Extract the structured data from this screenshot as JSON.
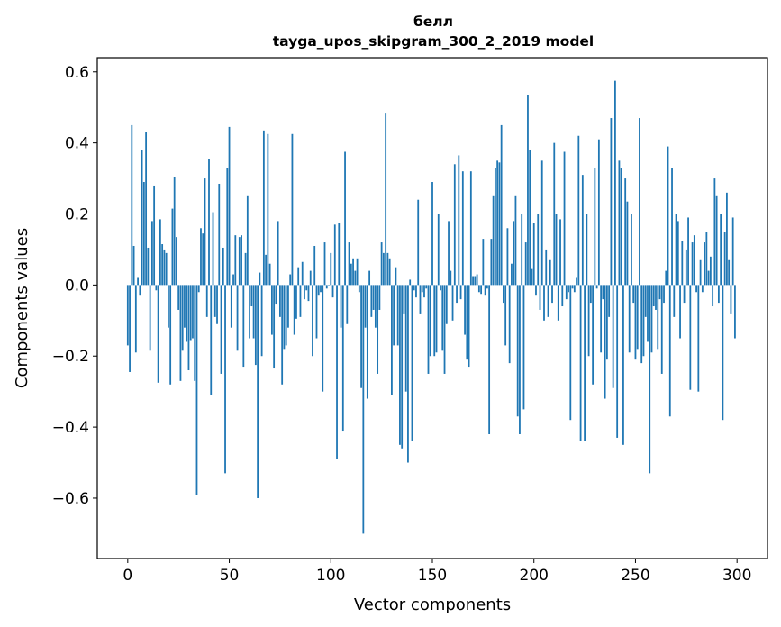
{
  "chart_data": {
    "type": "bar",
    "title": "белл",
    "subtitle": "tayga_upos_skipgram_300_2_2019 model",
    "xlabel": "Vector components",
    "ylabel": "Components values",
    "xlim": [
      -15,
      315
    ],
    "ylim": [
      -0.77,
      0.64
    ],
    "xticks": [
      0,
      50,
      100,
      150,
      200,
      250,
      300
    ],
    "xtick_labels": [
      "0",
      "50",
      "100",
      "150",
      "200",
      "250",
      "300"
    ],
    "yticks": [
      -0.6,
      -0.4,
      -0.2,
      0.0,
      0.2,
      0.4,
      0.6
    ],
    "ytick_labels": [
      "−0.6",
      "−0.4",
      "−0.2",
      "0.0",
      "0.2",
      "0.4",
      "0.6"
    ],
    "bar_color": "#1f77b4",
    "categories_start": 0,
    "values": [
      -0.17,
      -0.245,
      0.45,
      0.11,
      -0.19,
      0.02,
      -0.03,
      0.38,
      0.29,
      0.43,
      0.105,
      -0.185,
      0.18,
      0.28,
      -0.015,
      -0.275,
      0.185,
      0.115,
      0.1,
      0.09,
      -0.12,
      -0.28,
      0.215,
      0.305,
      0.135,
      -0.07,
      -0.27,
      -0.185,
      -0.12,
      -0.16,
      -0.24,
      -0.155,
      -0.15,
      -0.27,
      -0.59,
      -0.02,
      0.16,
      0.145,
      0.3,
      -0.09,
      0.355,
      -0.31,
      0.205,
      -0.09,
      -0.11,
      0.285,
      -0.25,
      0.105,
      -0.53,
      0.33,
      0.445,
      -0.12,
      0.03,
      0.14,
      -0.185,
      0.135,
      0.14,
      -0.23,
      0.09,
      0.25,
      -0.15,
      -0.06,
      -0.15,
      -0.225,
      -0.6,
      0.035,
      -0.2,
      0.435,
      0.085,
      0.425,
      0.06,
      -0.14,
      -0.235,
      -0.055,
      0.18,
      -0.09,
      -0.28,
      -0.18,
      -0.17,
      -0.12,
      0.03,
      0.425,
      -0.14,
      -0.095,
      0.05,
      -0.09,
      0.065,
      -0.04,
      -0.015,
      -0.045,
      0.04,
      -0.2,
      0.11,
      -0.15,
      -0.03,
      -0.02,
      -0.3,
      0.12,
      -0.01,
      0.0,
      0.09,
      -0.035,
      0.17,
      -0.49,
      0.175,
      -0.12,
      -0.41,
      0.375,
      -0.11,
      0.12,
      0.06,
      0.075,
      0.04,
      0.075,
      -0.02,
      -0.29,
      -0.7,
      -0.12,
      -0.32,
      0.04,
      -0.09,
      -0.07,
      -0.12,
      -0.25,
      -0.07,
      0.12,
      0.09,
      0.485,
      0.09,
      0.075,
      -0.31,
      -0.17,
      0.05,
      -0.17,
      -0.45,
      -0.46,
      -0.08,
      -0.3,
      -0.5,
      0.015,
      -0.44,
      -0.015,
      -0.035,
      0.24,
      -0.08,
      -0.02,
      -0.035,
      -0.01,
      -0.25,
      -0.2,
      0.29,
      -0.2,
      -0.19,
      0.2,
      -0.015,
      -0.185,
      -0.25,
      -0.11,
      0.18,
      0.04,
      -0.1,
      0.34,
      -0.05,
      0.365,
      -0.04,
      0.32,
      -0.14,
      -0.21,
      -0.23,
      0.32,
      0.025,
      0.025,
      0.03,
      -0.02,
      -0.025,
      0.13,
      -0.03,
      -0.01,
      -0.42,
      0.13,
      0.25,
      0.33,
      0.35,
      0.345,
      0.45,
      -0.05,
      -0.17,
      0.16,
      -0.22,
      0.06,
      0.18,
      0.25,
      -0.37,
      -0.42,
      0.2,
      -0.35,
      0.12,
      0.535,
      0.38,
      0.045,
      0.175,
      -0.03,
      0.2,
      -0.07,
      0.35,
      -0.1,
      0.1,
      -0.09,
      0.07,
      -0.05,
      0.4,
      0.2,
      -0.1,
      0.185,
      -0.06,
      0.375,
      -0.04,
      -0.02,
      -0.38,
      -0.01,
      -0.02,
      0.02,
      0.42,
      -0.44,
      0.31,
      -0.44,
      0.2,
      -0.2,
      -0.05,
      -0.28,
      0.33,
      -0.01,
      0.41,
      -0.19,
      -0.04,
      -0.32,
      -0.21,
      -0.09,
      0.47,
      -0.29,
      0.575,
      -0.43,
      0.35,
      0.33,
      -0.45,
      0.3,
      0.235,
      -0.19,
      0.2,
      -0.05,
      -0.21,
      -0.18,
      0.47,
      -0.22,
      -0.2,
      -0.09,
      -0.16,
      -0.53,
      -0.19,
      -0.06,
      -0.07,
      -0.18,
      -0.04,
      -0.25,
      -0.05,
      0.04,
      0.39,
      -0.37,
      0.33,
      -0.09,
      0.2,
      0.18,
      -0.15,
      0.125,
      -0.05,
      0.1,
      0.19,
      -0.295,
      0.12,
      0.14,
      -0.02,
      -0.3,
      0.07,
      -0.02,
      0.12,
      0.15,
      0.04,
      0.08,
      -0.06,
      0.3,
      0.25,
      -0.05,
      0.2,
      -0.38,
      0.15,
      0.26,
      0.07,
      -0.08,
      0.19,
      -0.15
    ]
  }
}
